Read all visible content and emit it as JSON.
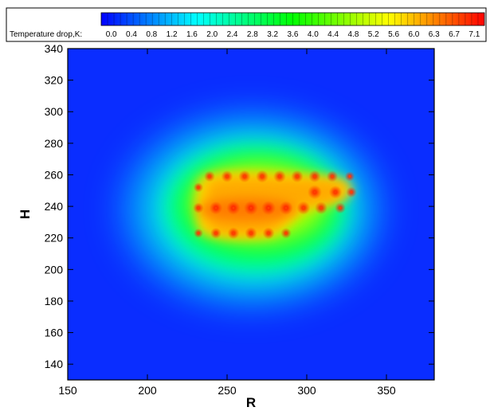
{
  "chart_data": {
    "type": "heatmap",
    "title": "",
    "xlabel": "R",
    "ylabel": "H",
    "xlim": [
      150,
      380
    ],
    "ylim": [
      130,
      340
    ],
    "xticks": [
      "150",
      "200",
      "250",
      "300",
      "350"
    ],
    "yticks": [
      "140",
      "160",
      "180",
      "200",
      "220",
      "240",
      "260",
      "280",
      "300",
      "320",
      "340"
    ],
    "colorbar": {
      "label": "Temperature drop,K:",
      "ticks": [
        "0.0",
        "0.4",
        "0.8",
        "1.2",
        "1.6",
        "2.0",
        "2.4",
        "2.8",
        "3.2",
        "3.6",
        "4.0",
        "4.4",
        "4.8",
        "5.2",
        "5.6",
        "6.0",
        "6.3",
        "6.7",
        "7.1"
      ],
      "colormap": [
        "#0000ff",
        "#00ffff",
        "#00ff00",
        "#ffff00",
        "#ff0000"
      ]
    },
    "points": [
      {
        "r": 239,
        "h": 259,
        "v": 6.3
      },
      {
        "r": 250,
        "h": 259,
        "v": 6.5
      },
      {
        "r": 261,
        "h": 259,
        "v": 6.6
      },
      {
        "r": 272,
        "h": 259,
        "v": 6.7
      },
      {
        "r": 283,
        "h": 259,
        "v": 6.7
      },
      {
        "r": 294,
        "h": 259,
        "v": 6.6
      },
      {
        "r": 305,
        "h": 259,
        "v": 6.6
      },
      {
        "r": 316,
        "h": 259,
        "v": 6.4
      },
      {
        "r": 327,
        "h": 259,
        "v": 6.0
      },
      {
        "r": 232,
        "h": 252,
        "v": 6.0
      },
      {
        "r": 305,
        "h": 249,
        "v": 7.1
      },
      {
        "r": 318,
        "h": 249,
        "v": 6.8
      },
      {
        "r": 328,
        "h": 249,
        "v": 6.2
      },
      {
        "r": 232,
        "h": 239,
        "v": 6.2
      },
      {
        "r": 243,
        "h": 239,
        "v": 6.8
      },
      {
        "r": 254,
        "h": 239,
        "v": 7.0
      },
      {
        "r": 265,
        "h": 239,
        "v": 7.1
      },
      {
        "r": 276,
        "h": 239,
        "v": 7.1
      },
      {
        "r": 287,
        "h": 239,
        "v": 7.0
      },
      {
        "r": 298,
        "h": 239,
        "v": 6.9
      },
      {
        "r": 309,
        "h": 239,
        "v": 6.7
      },
      {
        "r": 321,
        "h": 239,
        "v": 6.3
      },
      {
        "r": 232,
        "h": 223,
        "v": 5.9
      },
      {
        "r": 243,
        "h": 223,
        "v": 6.3
      },
      {
        "r": 254,
        "h": 223,
        "v": 6.5
      },
      {
        "r": 265,
        "h": 223,
        "v": 6.6
      },
      {
        "r": 276,
        "h": 223,
        "v": 6.5
      },
      {
        "r": 287,
        "h": 223,
        "v": 6.2
      }
    ]
  }
}
